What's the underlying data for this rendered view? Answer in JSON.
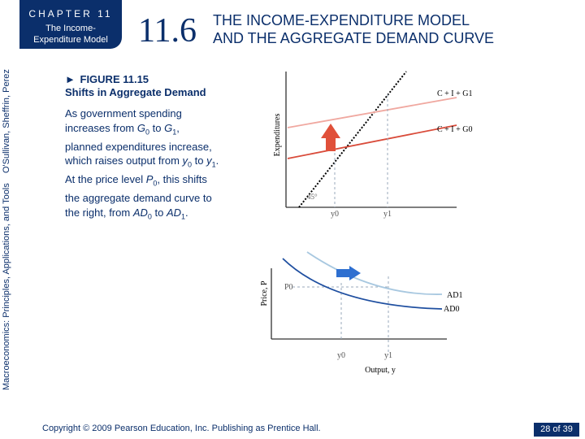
{
  "header": {
    "chapter_label": "CHAPTER 11",
    "chapter_subtitle_line1": "The Income-",
    "chapter_subtitle_line2": "Expenditure Model",
    "section_number": "11.6",
    "section_title_line1": "THE INCOME-EXPENDITURE MODEL",
    "section_title_line2": "AND THE AGGREGATE DEMAND CURVE"
  },
  "sidebar": {
    "book_title": "Macroeconomics: Principles, Applications, and Tools",
    "authors": "O'Sullivan, Sheffrin, Perez"
  },
  "figure": {
    "title_line1": "FIGURE 11.15",
    "title_line2": "Shifts in Aggregate Demand"
  },
  "caption": {
    "p1": "As government spending increases from ",
    "g0": "G",
    "g0_sub": "0",
    "p2": " to ",
    "g1": "G",
    "g1_sub": "1",
    "p3": ", planned expenditures increase, which raises output from ",
    "y0": "y",
    "y0_sub": "0",
    "p4": " to ",
    "y1": "y",
    "y1_sub": "1",
    "p5": ".",
    "p6": "At the price level ",
    "p0": "P",
    "p0_sub": "0",
    "p7": ", this shifts the aggregate demand curve to the right, from ",
    "ad0": "AD",
    "ad0_sub": "0",
    "p8": " to ",
    "ad1": "AD",
    "ad1_sub": "1",
    "p9": "."
  },
  "chart_data": [
    {
      "type": "line",
      "ylabel": "Expenditures",
      "x_ticks": [
        "y0",
        "y1"
      ],
      "annotations": [
        "45°"
      ],
      "series": [
        {
          "name": "C + I + G1",
          "color": "#f0a8a0"
        },
        {
          "name": "C + I + G0",
          "color": "#d94b3a"
        },
        {
          "name": "45° line",
          "color": "#000000"
        }
      ],
      "arrow": {
        "direction": "up",
        "color": "#e0503a"
      }
    },
    {
      "type": "line",
      "ylabel": "Price, P",
      "xlabel": "Output, y",
      "x_ticks": [
        "y0",
        "y1"
      ],
      "y_ticks": [
        "P0"
      ],
      "series": [
        {
          "name": "AD1",
          "color": "#a8c8e0"
        },
        {
          "name": "AD0",
          "color": "#1f4fa0"
        }
      ],
      "arrow": {
        "direction": "right",
        "color": "#2e6fd0"
      }
    }
  ],
  "footer": {
    "copyright": "Copyright © 2009 Pearson Education, Inc. Publishing as Prentice Hall.",
    "page_current": "28",
    "page_of": "of",
    "page_total": "39"
  }
}
